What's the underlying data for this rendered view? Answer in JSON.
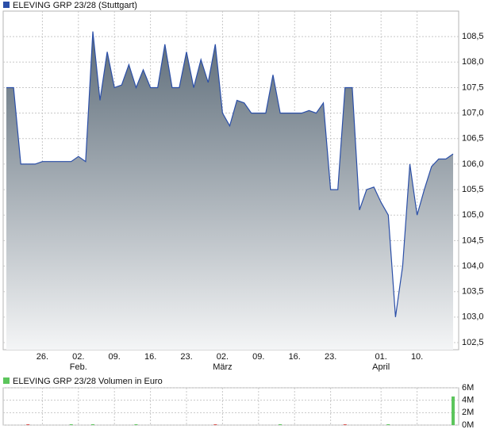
{
  "chart_data": [
    {
      "type": "area",
      "title": "ELEVING GRP 23/28 (Stuttgart)",
      "color": "#2b4fa8",
      "fill_top": "#5c6b78",
      "fill_bottom": "#f4f5f6",
      "grid": true,
      "categories": [
        null,
        null,
        null,
        null,
        null,
        "26.",
        null,
        null,
        null,
        null,
        "02.",
        null,
        null,
        null,
        null,
        "09.",
        null,
        null,
        null,
        null,
        "16.",
        null,
        null,
        null,
        null,
        "23.",
        null,
        null,
        null,
        null,
        "02.",
        null,
        null,
        null,
        null,
        "09.",
        null,
        null,
        null,
        null,
        "16.",
        null,
        null,
        null,
        null,
        "23.",
        null,
        null,
        null,
        null,
        null,
        null,
        "01.",
        null,
        null,
        null,
        null,
        "10.",
        null,
        null,
        null,
        null,
        null
      ],
      "months": [
        null,
        null,
        null,
        null,
        null,
        null,
        null,
        null,
        null,
        null,
        "Feb.",
        null,
        null,
        null,
        null,
        null,
        null,
        null,
        null,
        null,
        null,
        null,
        null,
        null,
        null,
        null,
        null,
        null,
        null,
        null,
        "März",
        null,
        null,
        null,
        null,
        null,
        null,
        null,
        null,
        null,
        null,
        null,
        null,
        null,
        null,
        null,
        null,
        null,
        null,
        null,
        null,
        null,
        "April",
        null,
        null,
        null,
        null,
        null,
        null,
        null,
        null,
        null,
        null
      ],
      "values": [
        107.5,
        107.5,
        106.0,
        106.0,
        106.0,
        106.05,
        106.05,
        106.05,
        106.05,
        106.05,
        106.15,
        106.05,
        108.6,
        107.25,
        108.2,
        107.5,
        107.55,
        107.95,
        107.5,
        107.85,
        107.5,
        107.5,
        108.35,
        107.5,
        107.5,
        108.2,
        107.5,
        108.05,
        107.6,
        108.35,
        107.0,
        106.75,
        107.25,
        107.2,
        107.0,
        107.0,
        107.0,
        107.75,
        107.0,
        107.0,
        107.0,
        107.0,
        107.05,
        107.0,
        107.2,
        105.5,
        105.5,
        107.5,
        107.5,
        105.1,
        105.5,
        105.55,
        105.25,
        105.0,
        103.0,
        104.0,
        106.0,
        105.0,
        105.5,
        105.95,
        106.1,
        106.1,
        106.2
      ],
      "ylim": [
        102.36,
        109.0
      ],
      "yticks": [
        {
          "value": 102.5,
          "label": "102,5"
        },
        {
          "value": 103.0,
          "label": "103,0"
        },
        {
          "value": 103.5,
          "label": "103,5"
        },
        {
          "value": 104.0,
          "label": "104,0"
        },
        {
          "value": 104.5,
          "label": "104,5"
        },
        {
          "value": 105.0,
          "label": "105,0"
        },
        {
          "value": 105.5,
          "label": "105,5"
        },
        {
          "value": 106.0,
          "label": "106,0"
        },
        {
          "value": 106.5,
          "label": "106,5"
        },
        {
          "value": 107.0,
          "label": "107,0"
        },
        {
          "value": 107.5,
          "label": "107,5"
        },
        {
          "value": 108.0,
          "label": "108,0"
        },
        {
          "value": 108.5,
          "label": "108,5"
        }
      ]
    },
    {
      "type": "bar",
      "title": "ELEVING GRP 23/28 Volumen in Euro",
      "color": "#5cc55c",
      "down_color": "#d9534f",
      "grid": true,
      "values": [
        0,
        0,
        0,
        30000,
        0,
        0,
        0,
        0,
        0,
        30000,
        0,
        0,
        30000,
        0,
        0,
        0,
        0,
        0,
        30000,
        0,
        0,
        0,
        0,
        0,
        0,
        0,
        0,
        0,
        0,
        30000,
        0,
        0,
        0,
        0,
        0,
        0,
        0,
        0,
        30000,
        0,
        0,
        0,
        0,
        0,
        0,
        0,
        0,
        30000,
        0,
        0,
        0,
        0,
        0,
        30000,
        0,
        0,
        0,
        0,
        0,
        0,
        0,
        0,
        4600000
      ],
      "down": [
        false,
        false,
        false,
        true,
        false,
        false,
        false,
        false,
        false,
        false,
        false,
        false,
        false,
        false,
        false,
        false,
        false,
        false,
        false,
        false,
        false,
        false,
        false,
        false,
        false,
        false,
        false,
        false,
        false,
        true,
        false,
        false,
        false,
        false,
        false,
        false,
        false,
        false,
        false,
        false,
        false,
        false,
        false,
        false,
        false,
        false,
        false,
        true,
        false,
        false,
        false,
        false,
        false,
        false,
        false,
        false,
        false,
        false,
        false,
        false,
        false,
        false,
        false
      ],
      "ylim": [
        0,
        6000000
      ],
      "yticks": [
        {
          "value": 0,
          "label": "0M"
        },
        {
          "value": 2000000,
          "label": "2M"
        },
        {
          "value": 4000000,
          "label": "4M"
        },
        {
          "value": 6000000,
          "label": "6M"
        }
      ]
    }
  ]
}
